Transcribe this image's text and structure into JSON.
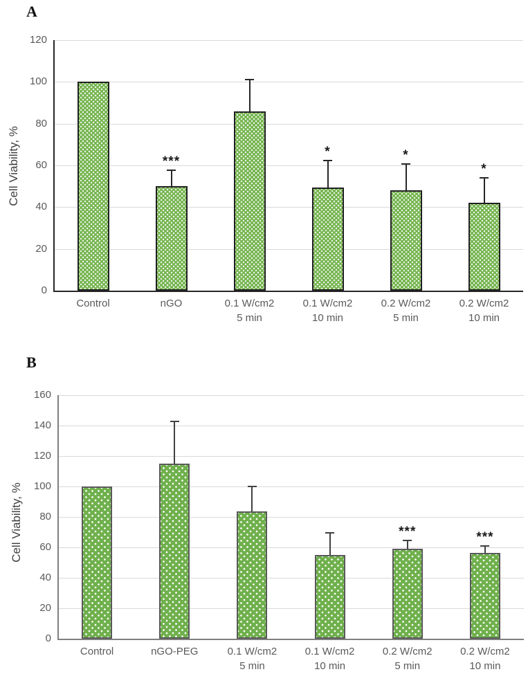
{
  "figure": {
    "background": "#ffffff",
    "grid_color": "#d9d9d9",
    "tick_text_color": "#595959",
    "axis_label_color": "#3f3f3f"
  },
  "chart_data": [
    {
      "type": "bar",
      "panel_label": "A",
      "ylabel": "Cell Viability, %",
      "ylim": [
        0,
        120
      ],
      "ytick_step": 20,
      "yticks": [
        0,
        20,
        40,
        60,
        80,
        100,
        120
      ],
      "categories": [
        [
          "Control"
        ],
        [
          "nGO"
        ],
        [
          "0.1 W/cm2",
          "5 min"
        ],
        [
          "0.1 W/cm2",
          "10 min"
        ],
        [
          "0.2 W/cm2",
          "5 min"
        ],
        [
          "0.2 W/cm2",
          "10 min"
        ]
      ],
      "values": [
        100,
        50,
        86,
        49.5,
        48,
        42
      ],
      "errors_up": [
        0,
        8,
        15.5,
        13,
        13,
        12.5
      ],
      "significance": [
        "",
        "***",
        "",
        "*",
        "*",
        "*"
      ],
      "grid": true,
      "legend": "none",
      "bar_fill": "#76b551",
      "bar_pattern": "dense-dots",
      "bar_border_color": "#1f1f1f",
      "axis_color": "#262626",
      "error_color": "#262626"
    },
    {
      "type": "bar",
      "panel_label": "B",
      "ylabel": "Cell Viability, %",
      "ylim": [
        0,
        160
      ],
      "ytick_step": 20,
      "yticks": [
        0,
        20,
        40,
        60,
        80,
        100,
        120,
        140,
        160
      ],
      "categories": [
        [
          "Control"
        ],
        [
          "nGO-PEG"
        ],
        [
          "0.1 W/cm2",
          "5 min"
        ],
        [
          "0.1 W/cm2",
          "10 min"
        ],
        [
          "0.2 W/cm2",
          "5 min"
        ],
        [
          "0.2 W/cm2",
          "10 min"
        ]
      ],
      "values": [
        100,
        115,
        83.5,
        55,
        59,
        56.5
      ],
      "errors_up": [
        0,
        28,
        17,
        15,
        6,
        5
      ],
      "significance": [
        "",
        "",
        "",
        "",
        "***",
        "***"
      ],
      "grid": true,
      "legend": "none",
      "bar_fill": "#6fb04c",
      "bar_pattern": "sparse-dots",
      "bar_border_color": "#595959",
      "axis_color": "#7f7f7f",
      "error_color": "#404040"
    }
  ]
}
